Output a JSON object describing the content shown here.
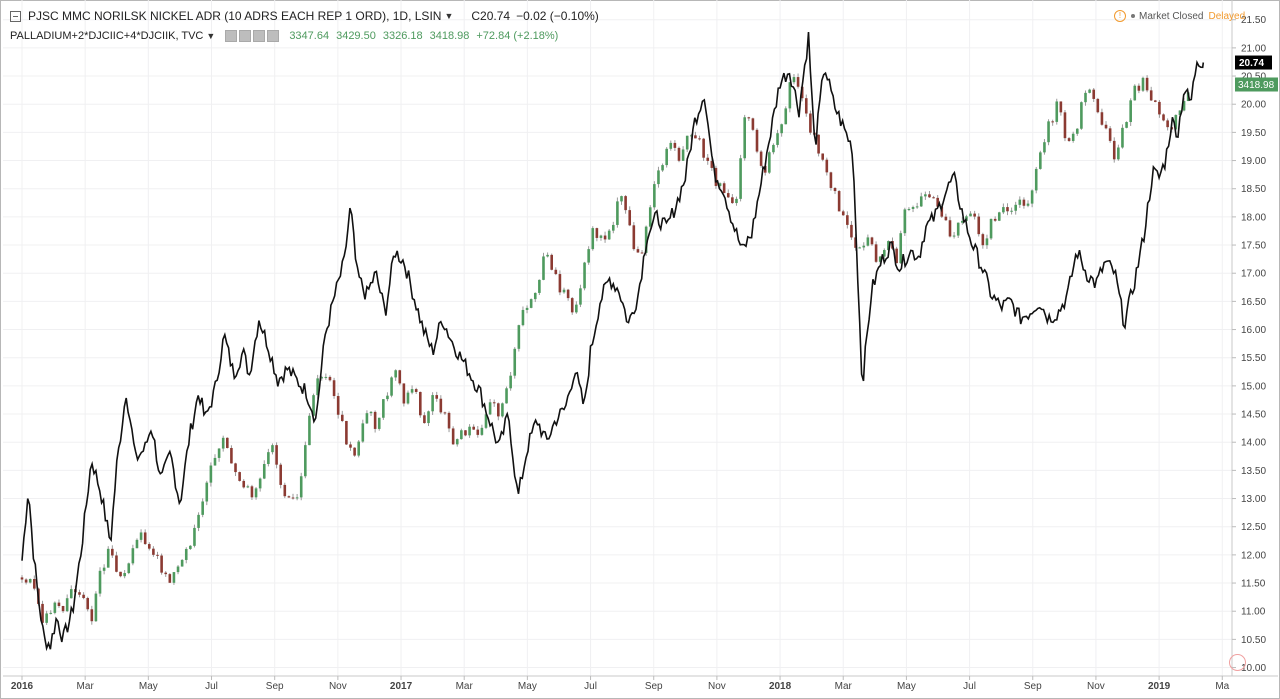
{
  "header": {
    "title": "PJSC MMC NORILSK NICKEL ADR (10 ADRS EACH REP 1 ORD), 1D, LSIN",
    "close": "C20.74",
    "change": "−0.02 (−0.10%)"
  },
  "overlay": {
    "title": "PALLADIUM+2*DJCIIC+4*DJCIIK, TVC",
    "values": [
      "3347.64",
      "3429.50",
      "3326.18",
      "3418.98",
      "+72.84 (+2.18%)"
    ]
  },
  "status": {
    "market": "Market Closed",
    "delayed": "Delayed"
  },
  "colors": {
    "up": "#4e9a5e",
    "down": "#8b3a32",
    "line": "#111111",
    "grid": "#f0f0f2"
  },
  "icons": [
    "collapse-icon",
    "chevron-down-icon",
    "warning-icon",
    "settings-circle-icon"
  ],
  "chart_data": {
    "type": "line",
    "x_ticks": [
      "2016",
      "Mar",
      "May",
      "Jul",
      "Sep",
      "Nov",
      "2017",
      "Mar",
      "May",
      "Jul",
      "Sep",
      "Nov",
      "2018",
      "Mar",
      "May",
      "Jul",
      "Sep",
      "Nov",
      "2019",
      "Ma"
    ],
    "y_ticks": [
      "21.50",
      "21.00",
      "20.50",
      "20.00",
      "19.50",
      "19.00",
      "18.50",
      "18.00",
      "17.50",
      "17.00",
      "16.50",
      "16.00",
      "15.50",
      "15.00",
      "14.50",
      "14.00",
      "13.50",
      "13.00",
      "12.50",
      "12.00",
      "11.50",
      "11.00",
      "10.50",
      "10.00"
    ],
    "ylim": [
      9.85,
      21.85
    ],
    "xlim": [
      0,
      37.5
    ],
    "series": [
      {
        "name": "PJSC MMC NORILSK NICKEL ADR (10 ADRS EACH REP 1 ORD), 1D, LSIN",
        "style": "line",
        "x": [
          0,
          0.2,
          0.35,
          0.5,
          0.7,
          0.9,
          1.1,
          1.3,
          1.6,
          1.9,
          2.2,
          2.5,
          2.8,
          3.0,
          3.3,
          3.6,
          3.9,
          4.1,
          4.4,
          4.7,
          5.0,
          5.3,
          5.6,
          5.8,
          6.1,
          6.4,
          6.7,
          7.0,
          7.2,
          7.5,
          7.8,
          8.1,
          8.4,
          8.7,
          9.0,
          9.3,
          9.6,
          9.9,
          10.2,
          10.4,
          10.6,
          10.9,
          11.2,
          11.5,
          11.8,
          12.1,
          12.4,
          12.7,
          13.0,
          13.3,
          13.6,
          13.9,
          14.2,
          14.5,
          14.8,
          15.1,
          15.4,
          15.7,
          16.0,
          16.3,
          16.6,
          16.9,
          17.2,
          17.5,
          17.8,
          18.0,
          18.3,
          18.6,
          18.9,
          19.2,
          19.5,
          19.8,
          20.1,
          20.4,
          20.7,
          21.0,
          21.3,
          21.6,
          21.9,
          22.2,
          22.5,
          22.8,
          23.1,
          23.4,
          23.7,
          24.0,
          24.3,
          24.6,
          24.9,
          25.1,
          25.4,
          25.7,
          26.0,
          26.3,
          26.6,
          26.9,
          27.2,
          27.5,
          27.8,
          28.1,
          28.4,
          28.6,
          28.9,
          29.2,
          29.5,
          29.8,
          30.1,
          30.4,
          30.7,
          31.0,
          31.3,
          31.6,
          31.9,
          32.2,
          32.5,
          32.8,
          33.1,
          33.4,
          33.7,
          34.0,
          34.3,
          34.6,
          34.9,
          35.2,
          35.5,
          35.8,
          36.0,
          36.2,
          36.4,
          36.6,
          36.8,
          37.0,
          37.2,
          37.4
        ],
        "y": [
          11.9,
          13.2,
          12.1,
          11.3,
          10.5,
          10.4,
          10.9,
          10.5,
          11.0,
          12.2,
          13.7,
          13.1,
          12.2,
          13.6,
          14.9,
          13.7,
          13.9,
          14.3,
          13.3,
          13.8,
          12.9,
          14.1,
          14.9,
          14.4,
          14.9,
          15.9,
          15.2,
          15.6,
          15.2,
          16.2,
          15.7,
          15.1,
          15.3,
          15.1,
          14.9,
          14.4,
          15.9,
          16.6,
          17.2,
          18.2,
          17.0,
          16.6,
          17.0,
          16.3,
          17.4,
          17.2,
          16.6,
          16.0,
          15.6,
          16.2,
          15.8,
          15.5,
          15.2,
          14.9,
          14.4,
          13.9,
          14.5,
          13.0,
          13.9,
          14.4,
          14.0,
          14.4,
          14.6,
          15.3,
          14.6,
          15.6,
          16.5,
          16.9,
          16.7,
          16.1,
          16.6,
          17.7,
          18.0,
          17.8,
          18.2,
          18.7,
          19.7,
          20.2,
          18.8,
          18.5,
          17.9,
          17.4,
          17.7,
          18.6,
          19.5,
          20.4,
          20.6,
          19.9,
          21.2,
          19.2,
          20.7,
          20.0,
          19.6,
          19.2,
          15.0,
          16.7,
          17.2,
          17.5,
          17.1,
          17.4,
          17.3,
          17.8,
          18.0,
          18.4,
          18.7,
          18.0,
          17.5,
          17.1,
          16.6,
          16.4,
          16.5,
          16.2,
          16.3,
          16.5,
          16.2,
          16.3,
          16.6,
          17.4,
          17.0,
          16.8,
          17.2,
          17.0,
          16.1,
          16.8,
          17.6,
          18.8,
          18.7,
          19.0,
          19.7,
          19.5,
          20.3,
          20.0,
          20.8,
          20.74
        ]
      },
      {
        "name": "PALLADIUM+2*DJCIIC+4*DJCIIK, TVC",
        "style": "candles",
        "x": [
          0,
          0.4,
          0.7,
          1.0,
          1.3,
          1.6,
          1.9,
          2.2,
          2.5,
          2.8,
          3.1,
          3.4,
          3.7,
          4.0,
          4.3,
          4.6,
          4.9,
          5.2,
          5.5,
          5.8,
          6.1,
          6.4,
          6.7,
          7.0,
          7.3,
          7.6,
          7.9,
          8.2,
          8.5,
          8.8,
          9.1,
          9.4,
          9.7,
          10.0,
          10.3,
          10.6,
          10.9,
          11.2,
          11.5,
          11.8,
          12.1,
          12.4,
          12.7,
          13.0,
          13.3,
          13.6,
          13.9,
          14.2,
          14.5,
          14.8,
          15.1,
          15.4,
          15.7,
          16.0,
          16.3,
          16.6,
          16.9,
          17.2,
          17.5,
          17.8,
          18.1,
          18.4,
          18.7,
          19.0,
          19.3,
          19.6,
          19.9,
          20.2,
          20.5,
          20.8,
          21.1,
          21.4,
          21.7,
          22.0,
          22.3,
          22.6,
          22.9,
          23.2,
          23.5,
          23.8,
          24.1,
          24.4,
          24.7,
          25.0,
          25.3,
          25.6,
          25.9,
          26.2,
          26.5,
          26.8,
          27.1,
          27.4,
          27.7,
          28.0,
          28.3,
          28.6,
          28.9,
          29.2,
          29.5,
          29.8,
          30.1,
          30.4,
          30.7,
          31.0,
          31.3,
          31.6,
          31.9,
          32.2,
          32.5,
          32.8,
          33.1,
          33.4,
          33.7,
          34.0,
          34.3,
          34.6,
          34.9,
          35.2,
          35.5,
          35.8,
          36.1,
          36.4,
          36.7,
          37.0
        ],
        "y": [
          11.6,
          11.4,
          10.8,
          11.1,
          11.0,
          11.5,
          11.2,
          10.9,
          11.7,
          12.1,
          11.5,
          11.8,
          12.4,
          12.2,
          11.9,
          11.5,
          11.7,
          12.0,
          12.6,
          13.2,
          13.8,
          14.1,
          13.6,
          13.3,
          13.0,
          13.4,
          13.9,
          13.3,
          12.9,
          13.2,
          14.5,
          15.3,
          15.1,
          14.6,
          14.0,
          13.8,
          14.6,
          14.3,
          14.8,
          15.3,
          14.7,
          15.0,
          14.3,
          14.8,
          14.6,
          14.0,
          14.1,
          14.3,
          14.2,
          14.8,
          14.4,
          15.0,
          16.1,
          16.4,
          16.8,
          17.5,
          16.9,
          16.6,
          16.3,
          17.1,
          17.8,
          17.5,
          17.9,
          18.5,
          17.6,
          17.2,
          18.2,
          18.9,
          19.3,
          19.1,
          19.5,
          19.4,
          19.0,
          18.6,
          18.3,
          18.1,
          19.9,
          19.4,
          18.8,
          19.3,
          19.8,
          20.6,
          20.2,
          19.5,
          19.0,
          18.6,
          18.1,
          17.8,
          17.4,
          17.6,
          17.1,
          17.6,
          17.2,
          18.3,
          18.1,
          18.5,
          18.3,
          17.9,
          17.6,
          18.0,
          18.2,
          17.5,
          17.9,
          18.2,
          18.0,
          18.4,
          18.1,
          19.2,
          19.6,
          20.0,
          19.2,
          19.6,
          20.3,
          20.0,
          19.5,
          19.1,
          19.6,
          20.2,
          20.4,
          20.1,
          19.8,
          19.5,
          20.0,
          20.35
        ]
      }
    ],
    "last_labels": [
      "20.74",
      "3418.98"
    ]
  }
}
